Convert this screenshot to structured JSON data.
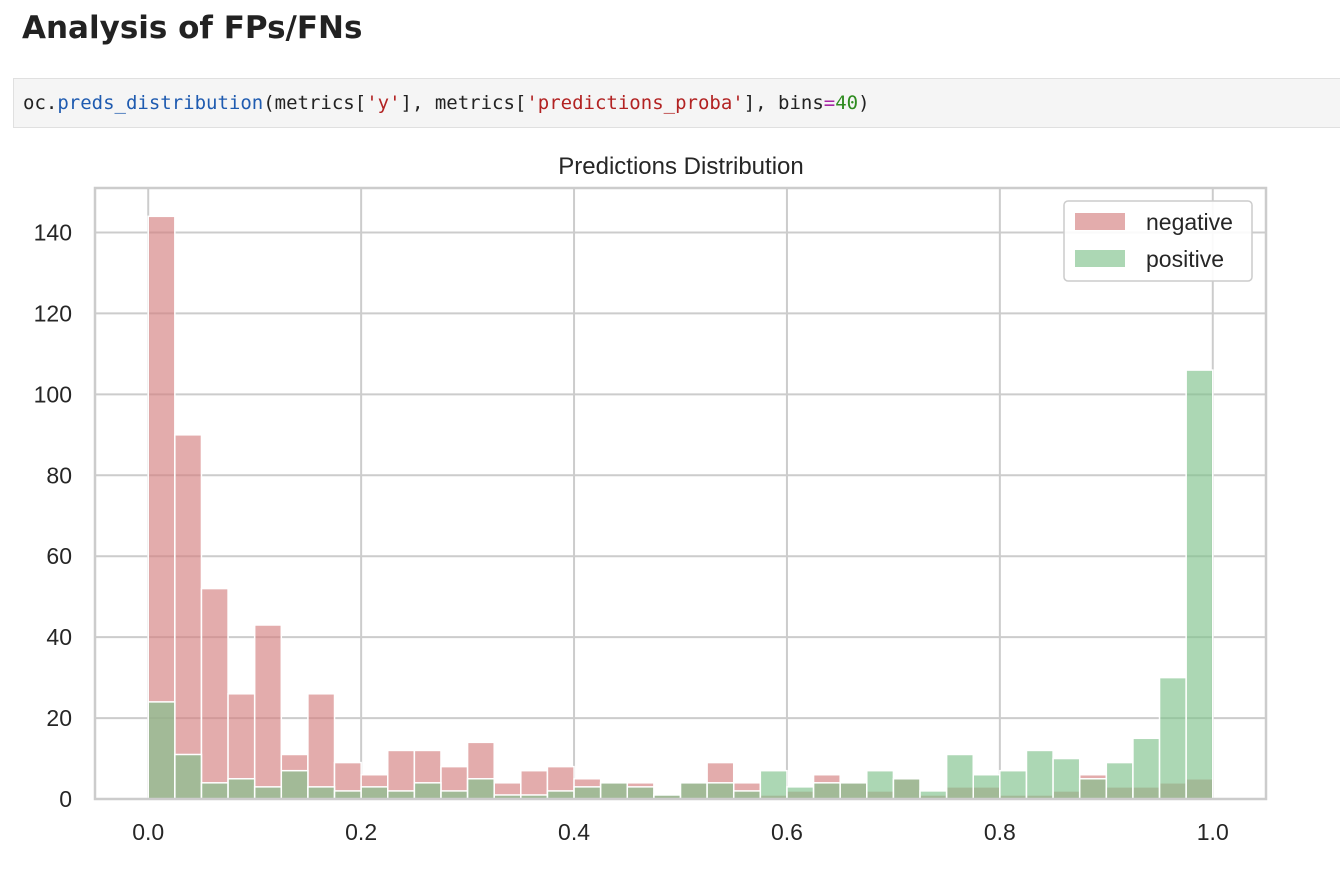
{
  "heading": "Analysis of FPs/FNs",
  "code": {
    "prefix": "oc.",
    "function": "preds_distribution",
    "open": "(metrics[",
    "arg1": "'y'",
    "middle": "], metrics[",
    "arg2": "'predictions_proba'",
    "after_arg2": "], bins",
    "equals": "=",
    "bins_value": "40",
    "close": ")"
  },
  "colors": {
    "negative": "#d47f80",
    "positive": "#7fc18c",
    "grid": "#cccccc",
    "code_background": "#f5f5f5"
  },
  "chart_data": {
    "type": "bar",
    "title": "Predictions Distribution",
    "xlabel": "",
    "ylabel": "",
    "xlim": [
      -0.05,
      1.05
    ],
    "ylim": [
      0,
      151
    ],
    "bins": 40,
    "bin_range": [
      0.0,
      1.0
    ],
    "x_ticks": [
      "0.0",
      "0.2",
      "0.4",
      "0.6",
      "0.8",
      "1.0"
    ],
    "y_ticks": [
      "0",
      "20",
      "40",
      "60",
      "80",
      "100",
      "120",
      "140"
    ],
    "grid": true,
    "legend_position": "top-right",
    "series": [
      {
        "name": "negative",
        "color": "#d47f80",
        "values": [
          144,
          90,
          52,
          26,
          43,
          11,
          26,
          9,
          6,
          12,
          12,
          8,
          14,
          4,
          7,
          8,
          5,
          4,
          4,
          1,
          4,
          9,
          4,
          1,
          2,
          6,
          4,
          2,
          5,
          1,
          3,
          3,
          1,
          1,
          2,
          6,
          3,
          3,
          4,
          5
        ]
      },
      {
        "name": "positive",
        "color": "#7fc18c",
        "values": [
          24,
          11,
          4,
          5,
          3,
          7,
          3,
          2,
          3,
          2,
          4,
          2,
          5,
          1,
          1,
          2,
          3,
          4,
          3,
          1,
          4,
          4,
          2,
          7,
          3,
          4,
          4,
          7,
          5,
          2,
          11,
          6,
          7,
          12,
          10,
          5,
          9,
          15,
          30,
          106
        ]
      }
    ]
  }
}
